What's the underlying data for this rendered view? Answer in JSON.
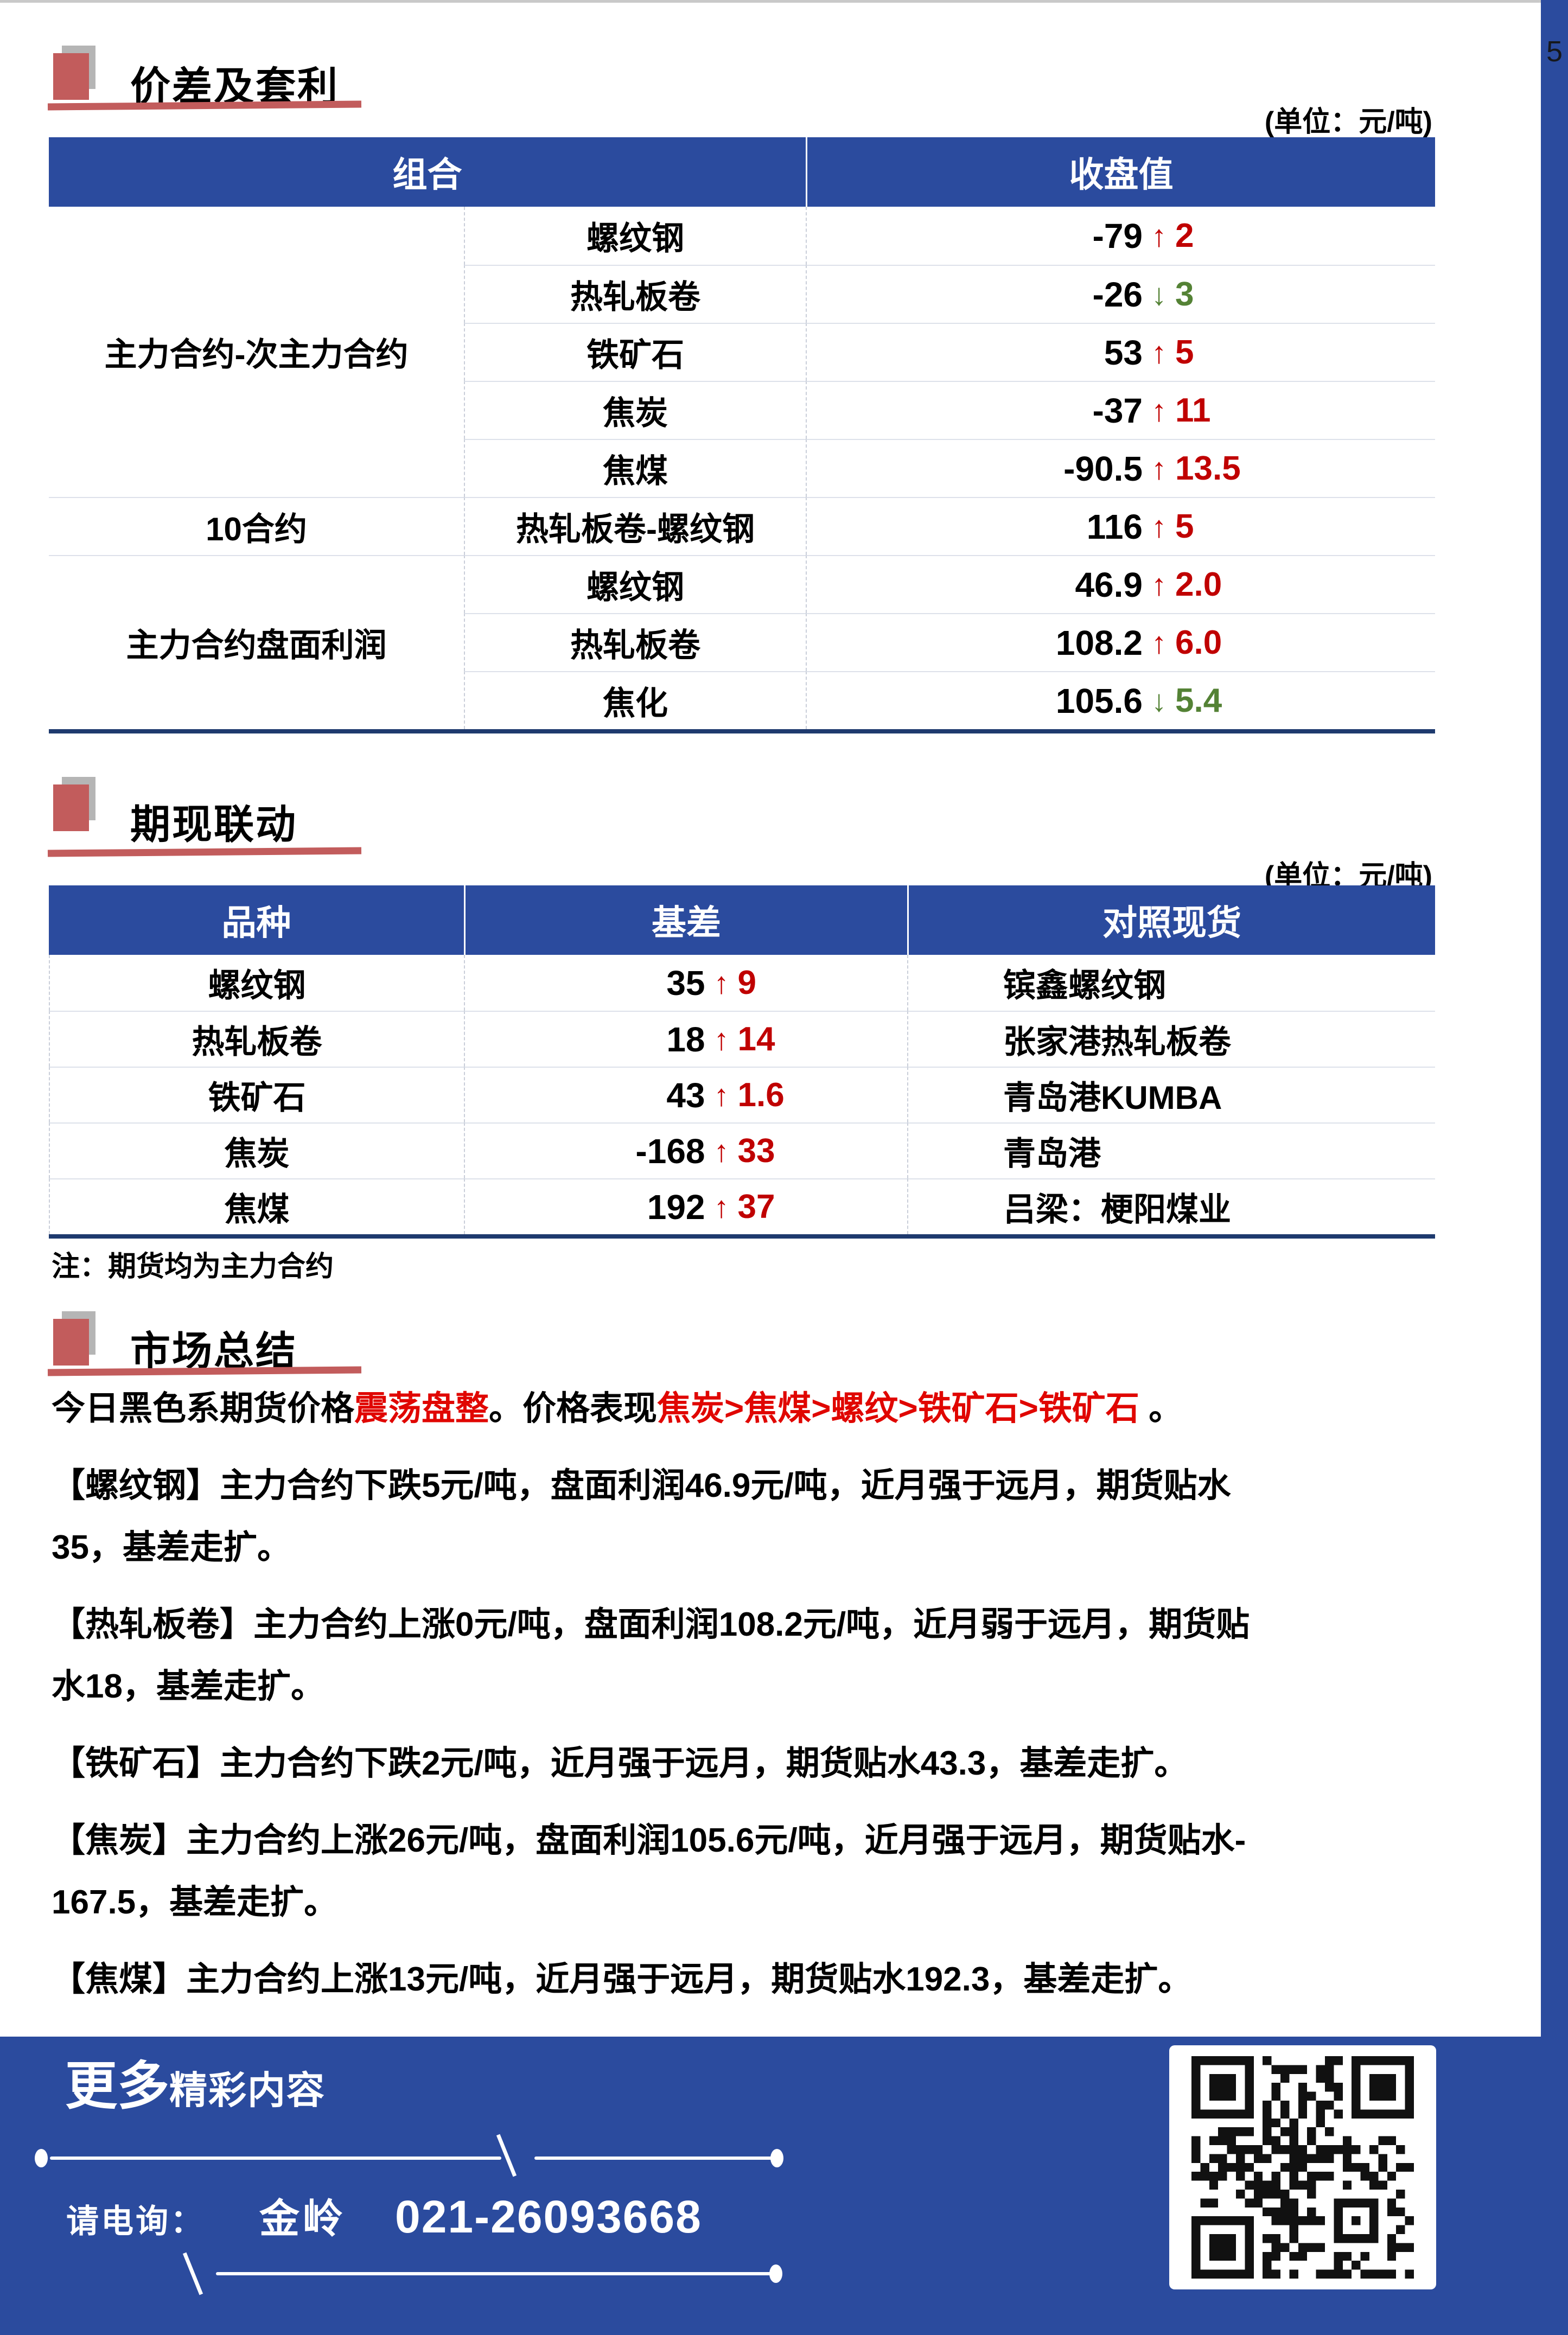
{
  "page": {
    "number": "5"
  },
  "colors": {
    "accent_blue": "#2b4b9e",
    "accent_red": "#c25c5c",
    "up_red": "#c00000",
    "down_green": "#548235",
    "summary_red": "#e00600",
    "table_border_navy": "#1e3a6e"
  },
  "section1": {
    "title": "价差及套利",
    "unit": "(单位：元/吨)",
    "table": {
      "headers": [
        "组合",
        "收盘值"
      ],
      "groups": [
        {
          "label": "主力合约-次主力合约",
          "rows": [
            {
              "name": "螺纹钢",
              "value": "-79",
              "dir": "up",
              "delta": "2"
            },
            {
              "name": "热轧板卷",
              "value": "-26",
              "dir": "down",
              "delta": "3"
            },
            {
              "name": "铁矿石",
              "value": "53",
              "dir": "up",
              "delta": "5"
            },
            {
              "name": "焦炭",
              "value": "-37",
              "dir": "up",
              "delta": "11"
            },
            {
              "name": "焦煤",
              "value": "-90.5",
              "dir": "up",
              "delta": "13.5"
            }
          ]
        },
        {
          "label": "10合约",
          "rows": [
            {
              "name": "热轧板卷-螺纹钢",
              "value": "116",
              "dir": "up",
              "delta": "5"
            }
          ]
        },
        {
          "label": "主力合约盘面利润",
          "rows": [
            {
              "name": "螺纹钢",
              "value": "46.9",
              "dir": "up",
              "delta": "2.0"
            },
            {
              "name": "热轧板卷",
              "value": "108.2",
              "dir": "up",
              "delta": "6.0"
            },
            {
              "name": "焦化",
              "value": "105.6",
              "dir": "down",
              "delta": "5.4"
            }
          ]
        }
      ]
    }
  },
  "section2": {
    "title": "期现联动",
    "unit": "(单位：元/吨)",
    "table": {
      "headers": [
        "品种",
        "基差",
        "对照现货"
      ],
      "rows": [
        {
          "name": "螺纹钢",
          "value": "35",
          "dir": "up",
          "delta": "9",
          "spot": "镔鑫螺纹钢"
        },
        {
          "name": "热轧板卷",
          "value": "18",
          "dir": "up",
          "delta": "14",
          "spot": "张家港热轧板卷"
        },
        {
          "name": "铁矿石",
          "value": "43",
          "dir": "up",
          "delta": "1.6",
          "spot": "青岛港KUMBA"
        },
        {
          "name": "焦炭",
          "value": "-168",
          "dir": "up",
          "delta": "33",
          "spot": "青岛港"
        },
        {
          "name": "焦煤",
          "value": "192",
          "dir": "up",
          "delta": "37",
          "spot": "吕梁：梗阳煤业"
        }
      ]
    },
    "note": "注：期货均为主力合约"
  },
  "section3": {
    "title": "市场总结",
    "paragraphs": [
      {
        "lines": [
          {
            "segments": [
              {
                "text": "今日黑色系期货价格",
                "color": "black"
              },
              {
                "text": "震荡盘整",
                "color": "red"
              },
              {
                "text": "。价格表现",
                "color": "black"
              },
              {
                "text": "焦炭>焦煤>螺纹>铁矿石>铁矿石",
                "color": "red"
              },
              {
                "text": " 。",
                "color": "black"
              }
            ]
          }
        ]
      },
      {
        "lines": [
          {
            "segments": [
              {
                "text": "【螺纹钢】主力合约下跌5元/吨，盘面利润46.9元/吨，近月强于远月，期货贴水",
                "color": "black"
              }
            ]
          },
          {
            "segments": [
              {
                "text": "35，基差走扩。",
                "color": "black"
              }
            ]
          }
        ]
      },
      {
        "lines": [
          {
            "segments": [
              {
                "text": "【热轧板卷】主力合约上涨0元/吨，盘面利润108.2元/吨，近月弱于远月，期货贴",
                "color": "black"
              }
            ]
          },
          {
            "segments": [
              {
                "text": "水18，基差走扩。",
                "color": "black"
              }
            ]
          }
        ]
      },
      {
        "lines": [
          {
            "segments": [
              {
                "text": "【铁矿石】主力合约下跌2元/吨，近月强于远月，期货贴水43.3，基差走扩。",
                "color": "black"
              }
            ]
          }
        ]
      },
      {
        "lines": [
          {
            "segments": [
              {
                "text": "【焦炭】主力合约上涨26元/吨，盘面利润105.6元/吨，近月强于远月，期货贴水-",
                "color": "black"
              }
            ]
          },
          {
            "segments": [
              {
                "text": "167.5，基差走扩。",
                "color": "black"
              }
            ]
          }
        ]
      },
      {
        "lines": [
          {
            "segments": [
              {
                "text": "【焦煤】主力合约上涨13元/吨，近月强于远月，期货贴水192.3，基差走扩。",
                "color": "black"
              }
            ]
          }
        ]
      }
    ]
  },
  "footer": {
    "more_big": "更多",
    "more_small": "精彩内容",
    "contact_label": "请电询：",
    "contact_name": "金岭",
    "phone": "021-26093668"
  }
}
